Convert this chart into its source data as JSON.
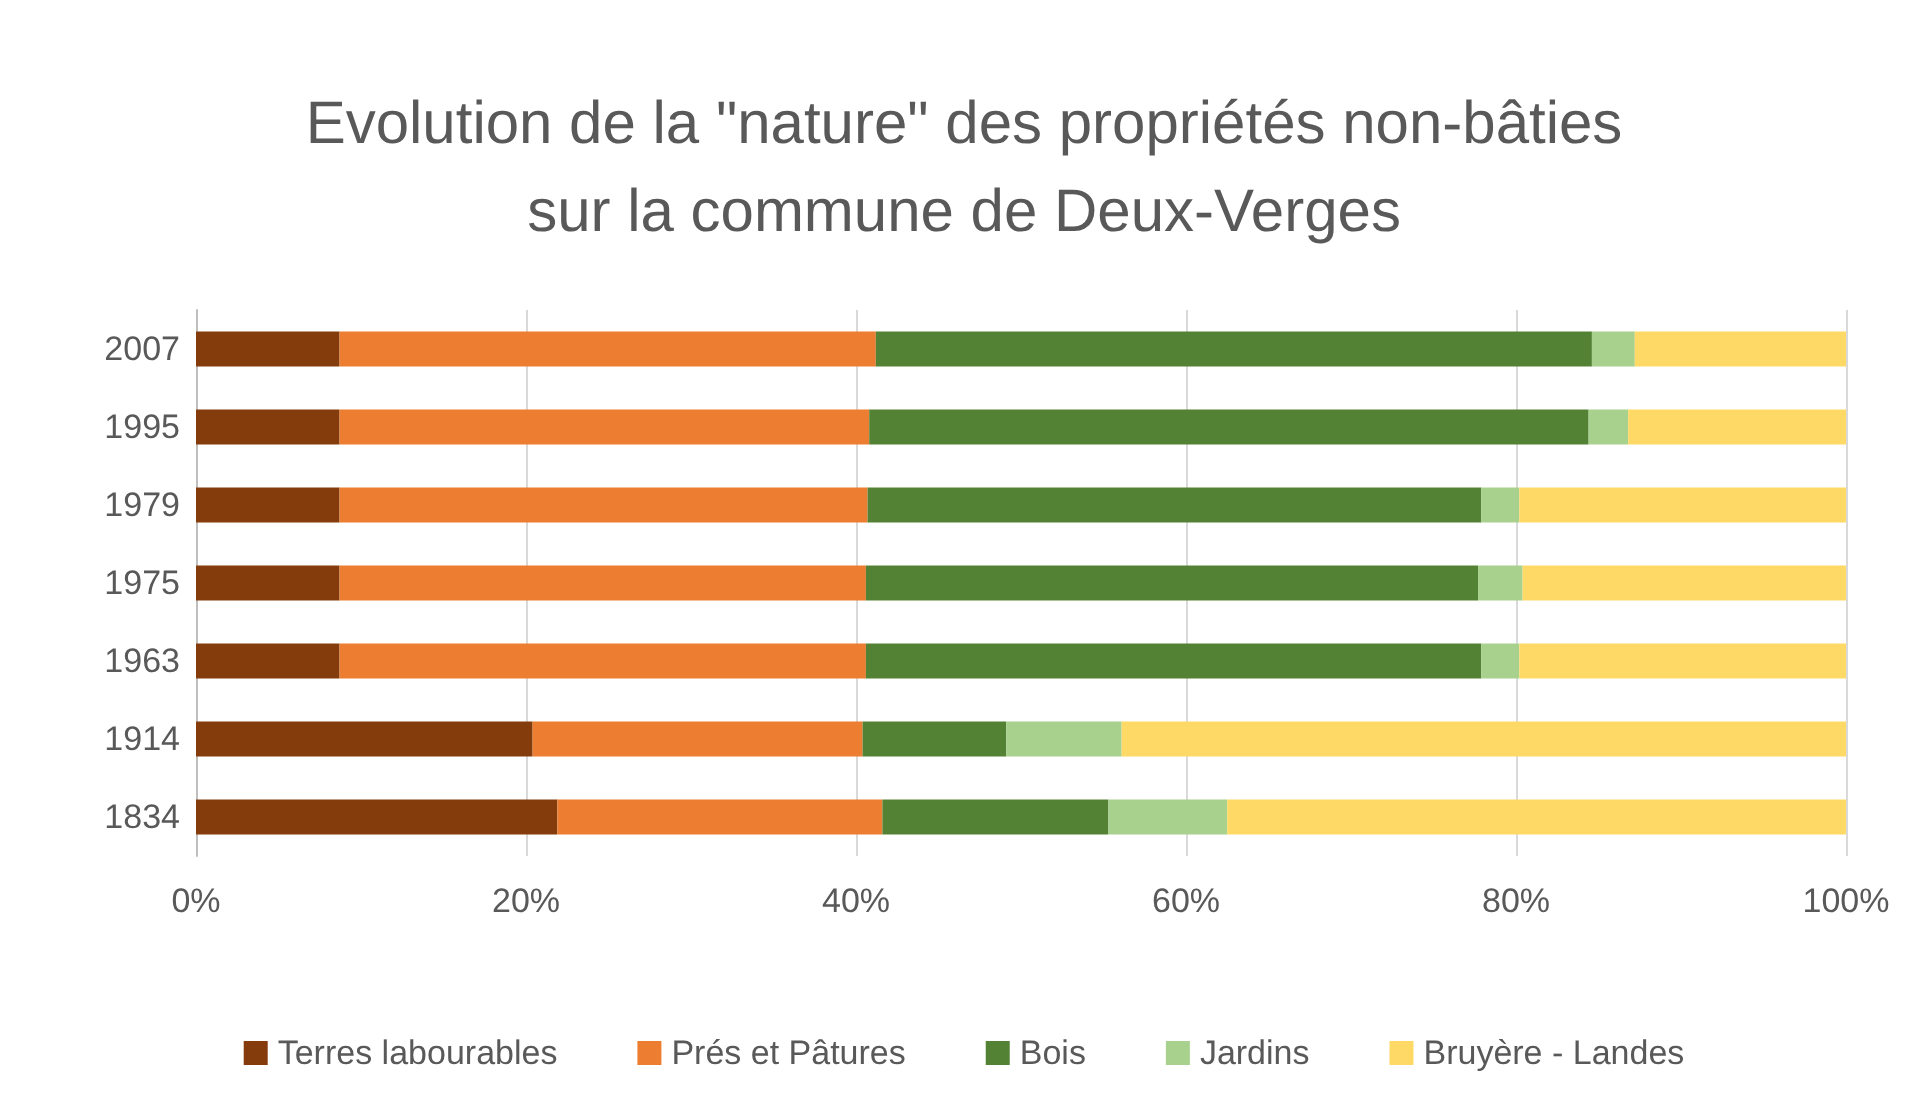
{
  "chart_data": {
    "type": "bar",
    "orientation": "horizontal",
    "stacked": true,
    "title": "Evolution de la \"nature\" des propriétés non-bâties\nsur la commune de Deux-Verges",
    "categories": [
      "2007",
      "1995",
      "1979",
      "1975",
      "1963",
      "1914",
      "1834"
    ],
    "series": [
      {
        "name": "Terres labourables",
        "color": "#843c0c",
        "values": [
          8.7,
          8.7,
          8.7,
          8.7,
          8.7,
          20.4,
          21.9
        ]
      },
      {
        "name": "Prés et Pâtures",
        "color": "#ed7d31",
        "values": [
          32.5,
          32.1,
          32.0,
          31.9,
          31.9,
          20.0,
          19.7
        ]
      },
      {
        "name": "Bois",
        "color": "#548235",
        "values": [
          43.4,
          43.6,
          37.2,
          37.1,
          37.3,
          8.7,
          13.7
        ]
      },
      {
        "name": "Jardins",
        "color": "#a9d18e",
        "values": [
          2.6,
          2.4,
          2.3,
          2.7,
          2.3,
          7.0,
          7.2
        ]
      },
      {
        "name": "Bruyère - Landes",
        "color": "#ffd966",
        "values": [
          12.8,
          13.2,
          19.8,
          19.6,
          19.8,
          43.9,
          37.5
        ]
      }
    ],
    "xlim": [
      0,
      100
    ],
    "xticks": [
      {
        "value": 0,
        "label": "0%"
      },
      {
        "value": 20,
        "label": "20%"
      },
      {
        "value": 40,
        "label": "40%"
      },
      {
        "value": 60,
        "label": "60%"
      },
      {
        "value": 80,
        "label": "80%"
      },
      {
        "value": 100,
        "label": "100%"
      }
    ],
    "grid": "x",
    "legend": "bottom"
  }
}
